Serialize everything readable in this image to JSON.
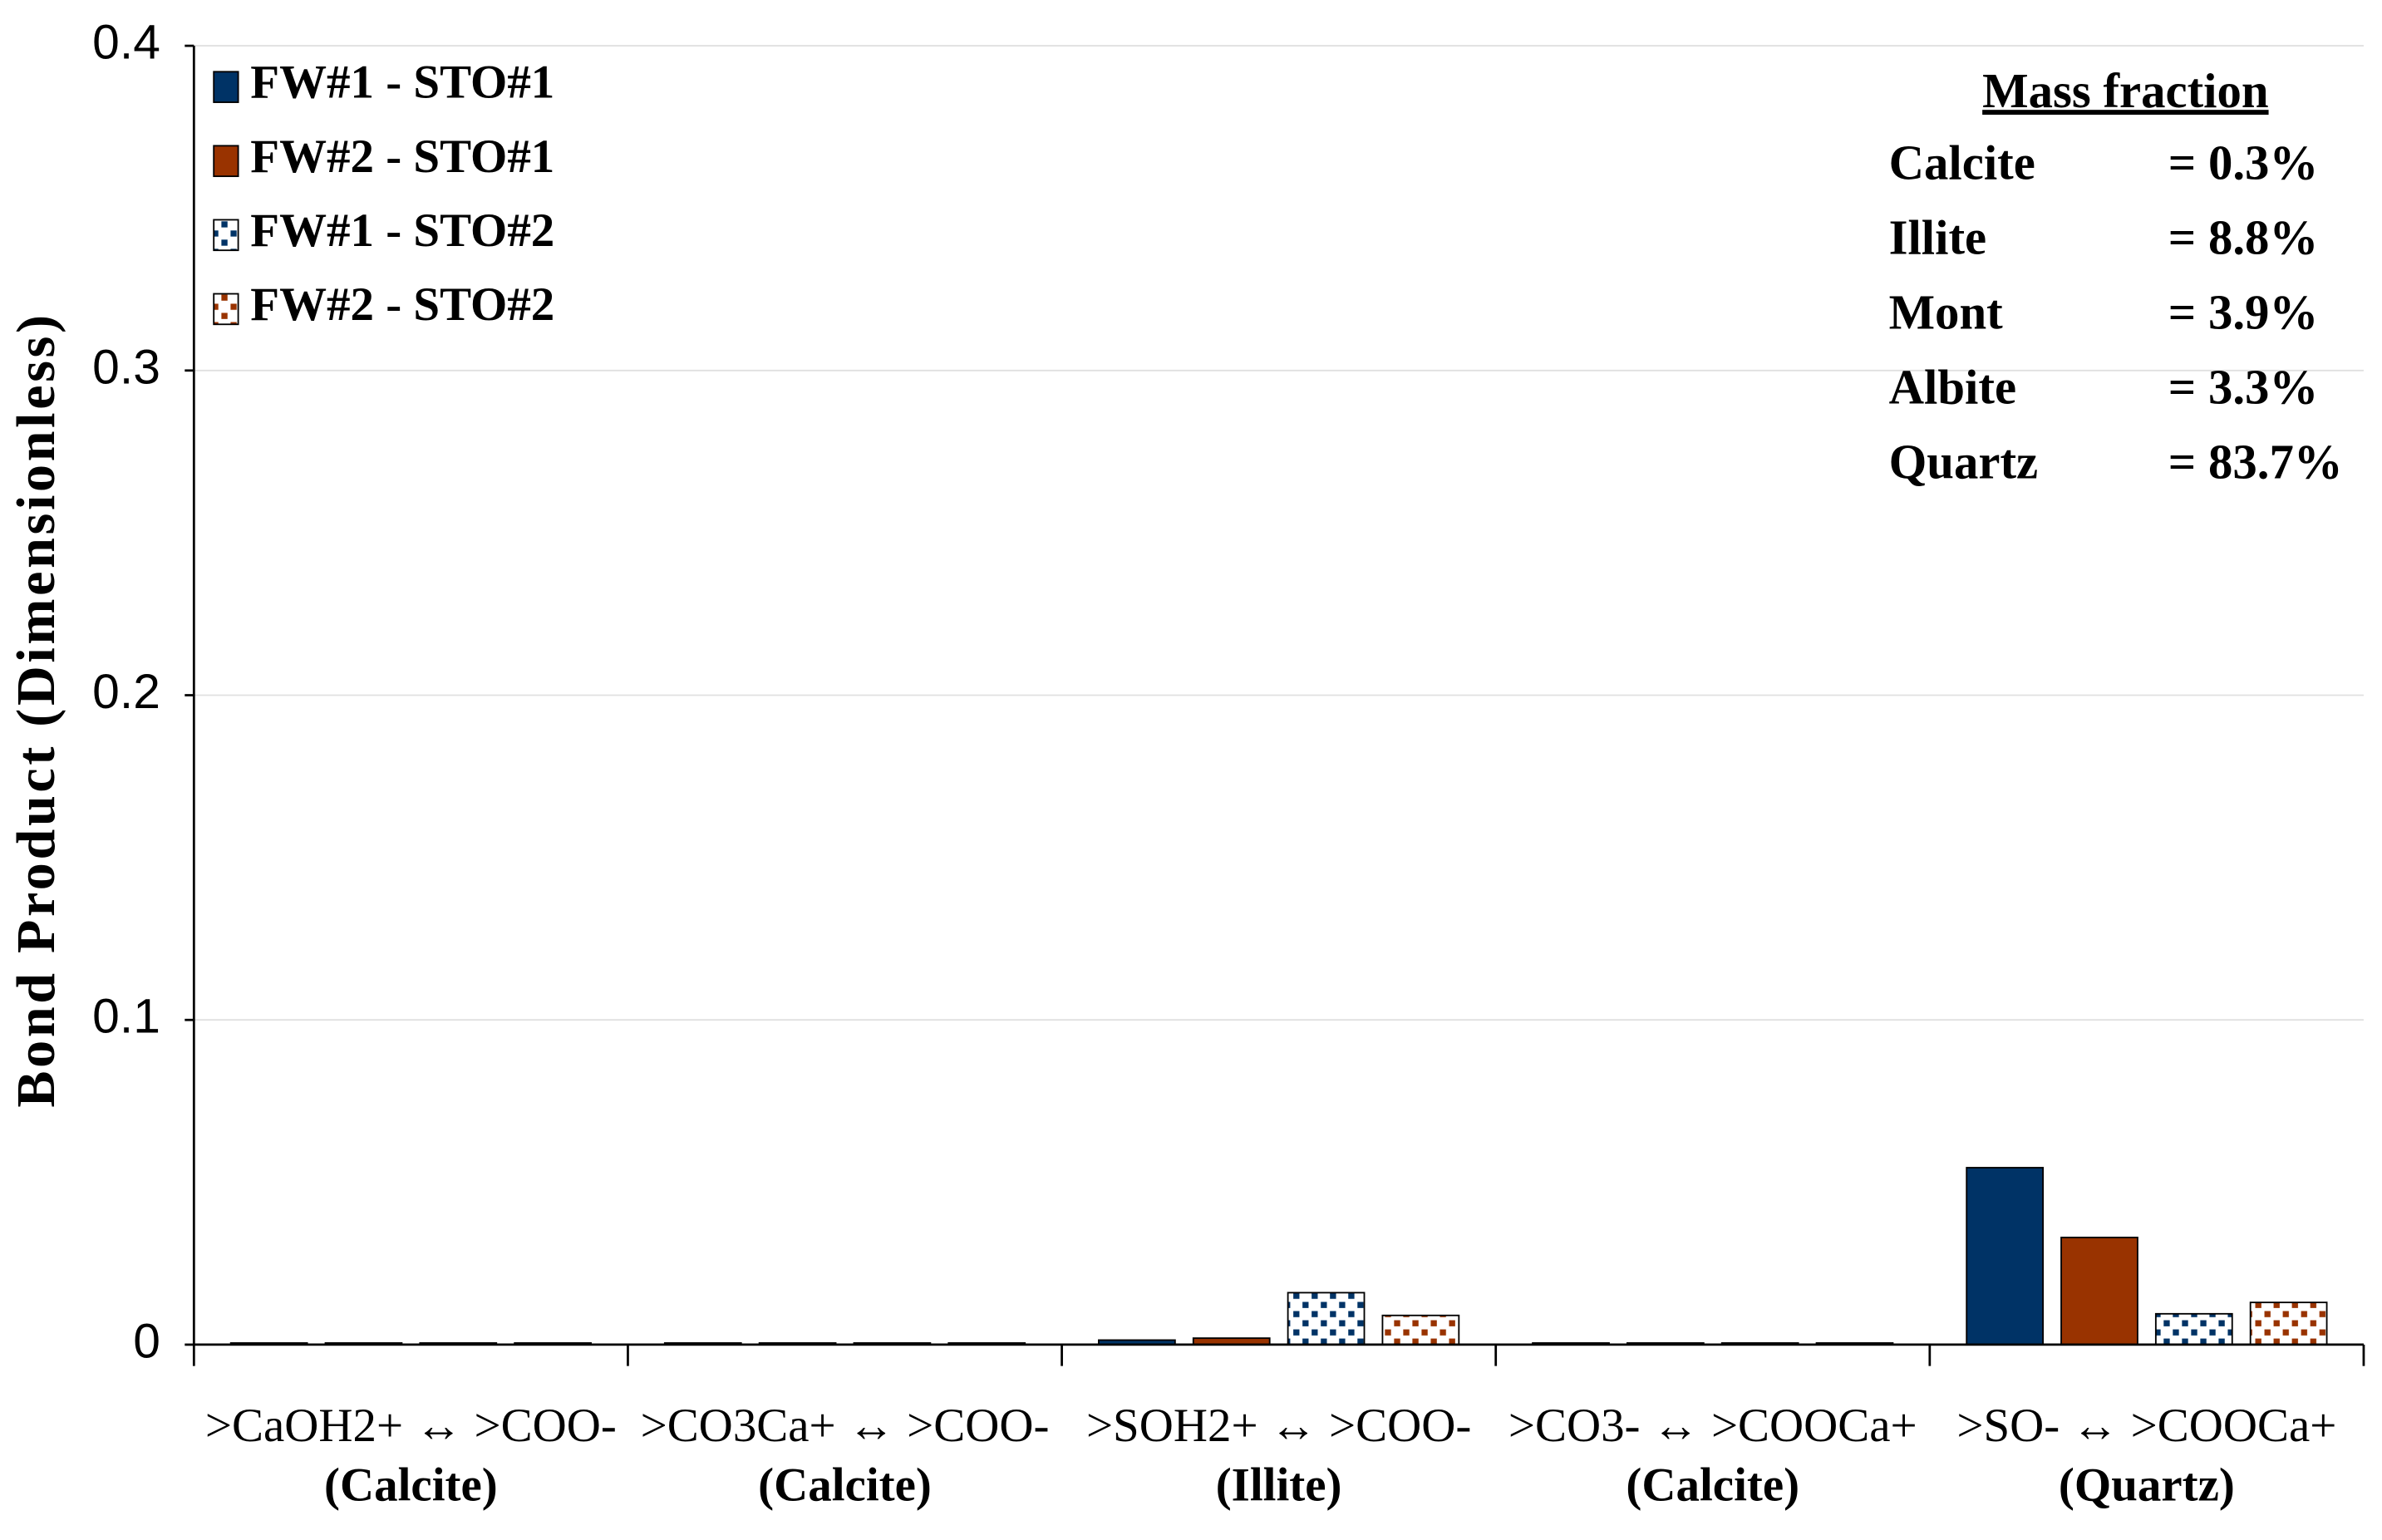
{
  "chart_data": {
    "type": "bar",
    "y_label": "Bond Product (Dimensionless)",
    "categories": [
      ">CaOH2+ ↔ >COO-",
      ">CO3Ca+  ↔ >COO-",
      ">SOH2+ ↔ >COO-",
      ">CO3- ↔ >COOCa+",
      ">SO- ↔ >COOCa+"
    ],
    "category_notes": [
      "(Calcite)",
      "(Calcite)",
      "(Illite)",
      "(Calcite)",
      "(Quartz)"
    ],
    "category_note_color": "#e00000",
    "series": [
      {
        "name": "FW#1 - STO#1",
        "color": "#003366",
        "values": [
          0.0005,
          0.0005,
          0.0014,
          0.0005,
          0.0545
        ]
      },
      {
        "name": "FW#2 - STO#1",
        "color": "#993300",
        "values": [
          0.0005,
          0.0005,
          0.002,
          0.0005,
          0.033
        ]
      },
      {
        "name": "FW#1 - STO#2",
        "color": "#003366",
        "pattern": "dots",
        "values": [
          0.0005,
          0.0005,
          0.016,
          0.0005,
          0.0095
        ]
      },
      {
        "name": "FW#2 - STO#2",
        "color": "#993300",
        "pattern": "dots",
        "values": [
          0.0005,
          0.0005,
          0.009,
          0.0005,
          0.013
        ]
      }
    ],
    "ylim": [
      0,
      0.4
    ],
    "yticks": [
      0,
      0.1,
      0.2,
      0.3,
      0.4
    ],
    "grid": true,
    "legend": "top-left",
    "annotation": {
      "title": "Mass fraction",
      "rows": [
        [
          "Calcite",
          "= 0.3%"
        ],
        [
          "Illite",
          "= 8.8%"
        ],
        [
          "Mont",
          "= 3.9%"
        ],
        [
          "Albite",
          "= 3.3%"
        ],
        [
          "Quartz",
          "= 83.7%"
        ]
      ]
    }
  }
}
